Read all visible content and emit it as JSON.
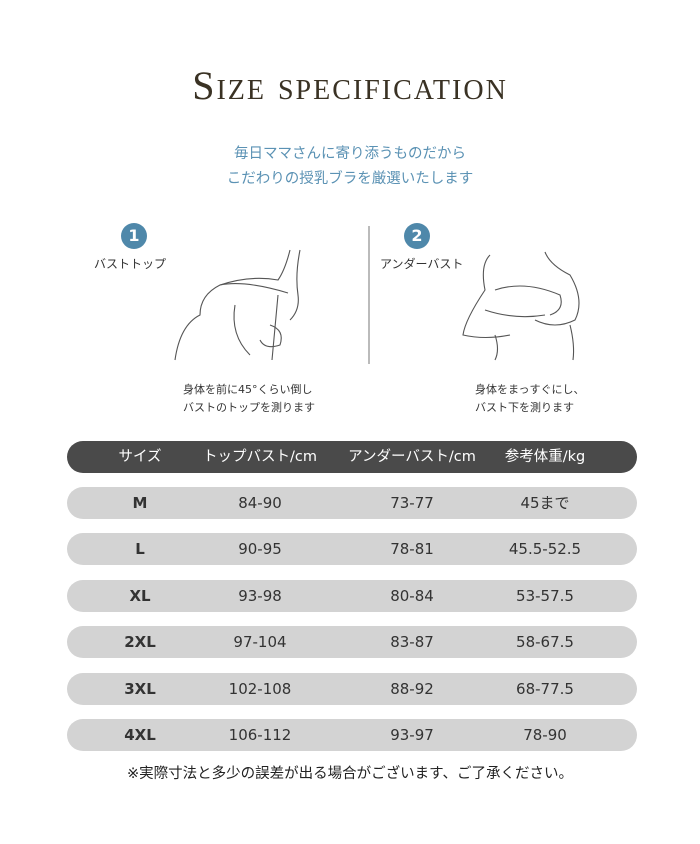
{
  "title": "Size specification",
  "subtitle": [
    "毎日ママさんに寄り添うものだから",
    "こだわりの授乳ブラを厳選いたします"
  ],
  "steps": [
    {
      "number": "1",
      "label": "バストトップ",
      "caption": [
        "身体を前に45°くらい倒し",
        "バストのトップを測ります"
      ]
    },
    {
      "number": "2",
      "label": "アンダーバスト",
      "caption": [
        "身体をまっすぐにし、",
        "バスト下を測ります"
      ]
    }
  ],
  "table": {
    "headers": [
      "サイズ",
      "トップバスト/cm",
      "アンダーバスト/cm",
      "参考体重/kg"
    ],
    "rows": [
      [
        "M",
        "84-90",
        "73-77",
        "45まで"
      ],
      [
        "L",
        "90-95",
        "78-81",
        "45.5-52.5"
      ],
      [
        "XL",
        "93-98",
        "80-84",
        "53-57.5"
      ],
      [
        "2XL",
        "97-104",
        "83-87",
        "58-67.5"
      ],
      [
        "3XL",
        "102-108",
        "88-92",
        "68-77.5"
      ],
      [
        "4XL",
        "106-112",
        "93-97",
        "78-90"
      ]
    ]
  },
  "note": "※実際寸法と多少の誤差が出る場合がございます、ご了承ください。",
  "colors": {
    "title": "#3a3224",
    "subtitle": "#5b92b4",
    "badge": "#4f88aa",
    "header_bar": "#4a4a4a",
    "row_bar": "#d3d3d3"
  }
}
